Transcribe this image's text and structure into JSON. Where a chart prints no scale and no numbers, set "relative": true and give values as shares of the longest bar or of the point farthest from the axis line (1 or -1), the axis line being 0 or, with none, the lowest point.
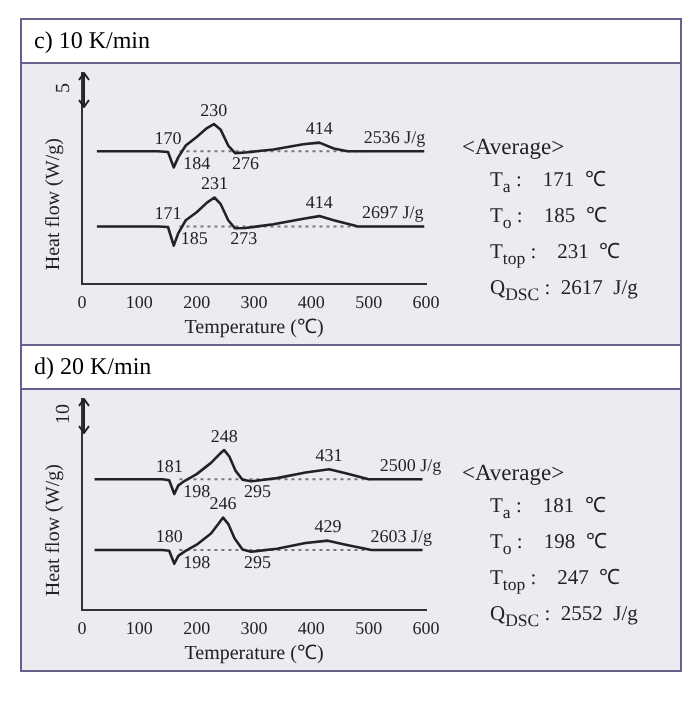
{
  "chart_data": [
    {
      "type": "line",
      "title": "c) 10 K/min",
      "xlabel": "Temperature (℃)",
      "ylabel": "Heat flow (W/g)",
      "relative": true,
      "xlim": [
        0,
        600
      ],
      "xticks": [
        0,
        100,
        200,
        300,
        400,
        500,
        600
      ],
      "grid": false,
      "legend": false,
      "marker": "none",
      "series": [
        {
          "color": "#222222",
          "x": [
            26,
            132,
            150,
            160,
            168,
            181,
            200,
            218,
            230,
            242,
            255,
            267,
            285,
            334,
            386,
            414,
            439,
            463,
            545,
            597
          ],
          "values": [
            0.83,
            0.83,
            0.826,
            0.73,
            0.794,
            0.866,
            0.92,
            0.975,
            1,
            0.964,
            0.866,
            0.819,
            0.823,
            0.841,
            0.874,
            0.884,
            0.848,
            0.83,
            0.83,
            0.83
          ]
        },
        {
          "color": "#222222",
          "x": [
            26,
            132,
            150,
            160,
            168,
            181,
            200,
            218,
            231,
            242,
            255,
            267,
            285,
            334,
            386,
            414,
            439,
            480,
            542,
            597
          ],
          "values": [
            0.361,
            0.361,
            0.358,
            0.242,
            0.32,
            0.4,
            0.45,
            0.51,
            0.542,
            0.5,
            0.4,
            0.35,
            0.352,
            0.375,
            0.41,
            0.426,
            0.4,
            0.362,
            0.361,
            0.361
          ]
        },
        {
          "color": "#777777",
          "line_style": "dotted",
          "x": [
            170,
            200,
            285,
            500
          ],
          "values": [
            0.83,
            0.83,
            0.83,
            0.83
          ]
        },
        {
          "color": "#777777",
          "line_style": "dotted",
          "x": [
            170,
            196,
            282,
            480
          ],
          "values": [
            0.361,
            0.361,
            0.361,
            0.361
          ]
        }
      ],
      "annotations": [
        "5",
        {
          "text": "230",
          "x": 230,
          "y": 1
        },
        {
          "text": "170",
          "x": 150,
          "y": 0.826
        },
        {
          "text": "184",
          "x": 200,
          "y": 0.83
        },
        {
          "text": "276",
          "x": 285,
          "y": 0.83
        },
        {
          "text": "414",
          "x": 414,
          "y": 0.884
        },
        {
          "text": "2536 J/g",
          "x": 545,
          "y": 0.83
        },
        {
          "text": "231",
          "x": 231,
          "y": 0.542
        },
        {
          "text": "171",
          "x": 150,
          "y": 0.358
        },
        {
          "text": "185",
          "x": 196,
          "y": 0.361
        },
        {
          "text": "273",
          "x": 282,
          "y": 0.361
        },
        {
          "text": "414",
          "x": 414,
          "y": 0.426
        },
        {
          "text": "2697 J/g",
          "x": 542,
          "y": 0.361
        },
        "<Average>",
        "T$_{a}$ :    171  ℃",
        "T$_{o}$ :    185  ℃",
        "T$_{top}$ :    231  ℃",
        "Q$_{DSC}$ :  2617  J/g"
      ]
    },
    {
      "type": "line",
      "title": "d) 20 K/min",
      "xlabel": "Temperature (℃)",
      "ylabel": "Heat flow (W/g)",
      "relative": true,
      "xlim": [
        0,
        600
      ],
      "xticks": [
        0,
        100,
        200,
        300,
        400,
        500,
        600
      ],
      "grid": false,
      "legend": false,
      "marker": "none",
      "series": [
        {
          "color": "#222222",
          "x": [
            22,
            140,
            152,
            161,
            168,
            180,
            200,
            225,
            240,
            248,
            257,
            268,
            280,
            295,
            340,
            390,
            431,
            460,
            500,
            573,
            594
          ],
          "values": [
            0.818,
            0.818,
            0.812,
            0.726,
            0.78,
            0.81,
            0.85,
            0.92,
            0.975,
            1,
            0.96,
            0.87,
            0.815,
            0.805,
            0.825,
            0.86,
            0.88,
            0.855,
            0.818,
            0.818,
            0.818
          ]
        },
        {
          "color": "#222222",
          "x": [
            22,
            140,
            152,
            161,
            168,
            180,
            200,
            225,
            238,
            246,
            255,
            266,
            280,
            295,
            340,
            390,
            429,
            460,
            505,
            557,
            594
          ],
          "values": [
            0.377,
            0.377,
            0.372,
            0.291,
            0.34,
            0.37,
            0.41,
            0.48,
            0.54,
            0.579,
            0.54,
            0.45,
            0.38,
            0.366,
            0.385,
            0.42,
            0.435,
            0.41,
            0.377,
            0.377,
            0.377
          ]
        },
        {
          "color": "#777777",
          "line_style": "dotted",
          "x": [
            170,
            200,
            306,
            510
          ],
          "values": [
            0.818,
            0.818,
            0.818,
            0.818
          ]
        },
        {
          "color": "#777777",
          "line_style": "dotted",
          "x": [
            170,
            200,
            306,
            505
          ],
          "values": [
            0.377,
            0.377,
            0.377,
            0.377
          ]
        }
      ],
      "annotations": [
        "10",
        {
          "text": "248",
          "x": 248,
          "y": 1
        },
        {
          "text": "181",
          "x": 152,
          "y": 0.812
        },
        {
          "text": "198",
          "x": 200,
          "y": 0.818
        },
        {
          "text": "295",
          "x": 306,
          "y": 0.818
        },
        {
          "text": "431",
          "x": 431,
          "y": 0.88
        },
        {
          "text": "2500 J/g",
          "x": 573,
          "y": 0.818
        },
        {
          "text": "246",
          "x": 246,
          "y": 0.579
        },
        {
          "text": "180",
          "x": 152,
          "y": 0.372
        },
        {
          "text": "198",
          "x": 200,
          "y": 0.377
        },
        {
          "text": "295",
          "x": 306,
          "y": 0.377
        },
        {
          "text": "429",
          "x": 429,
          "y": 0.435
        },
        {
          "text": "2603 J/g",
          "x": 557,
          "y": 0.377
        },
        "<Average>",
        "T$_{a}$ :    181  ℃",
        "T$_{o}$ :    198  ℃",
        "T$_{top}$ :    247  ℃",
        "Q$_{DSC}$ :  2552  J/g"
      ]
    }
  ]
}
